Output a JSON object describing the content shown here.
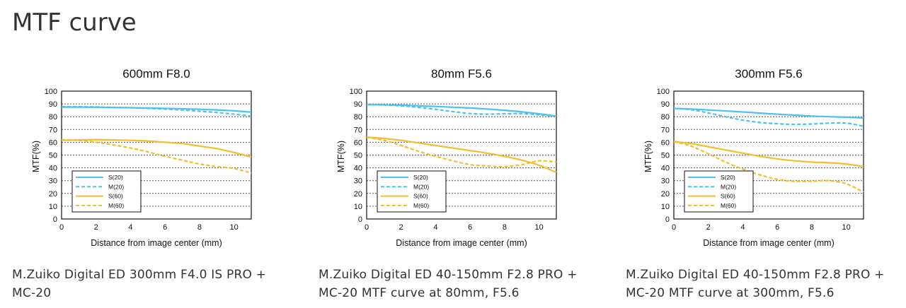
{
  "page": {
    "title": "MTF curve"
  },
  "colors": {
    "sagittal": "#4fc1ef",
    "sagittal_dash": "#4fc1ef",
    "low": "#f5bc2c",
    "grid": "#555555",
    "axis": "#111111"
  },
  "captions": [
    "M.Zuiko Digital ED 300mm F4.0 IS PRO + MC-20",
    "M.Zuiko Digital ED 40-150mm F2.8 PRO + MC-20 MTF curve at 80mm, F5.6",
    "M.Zuiko Digital ED 40-150mm F2.8 PRO + MC-20 MTF curve at 300mm, F5.6"
  ],
  "chart_data": [
    {
      "type": "line",
      "title": "600mm F8.0",
      "xlabel": "Distance from image center (mm)",
      "ylabel": "MTF(%)",
      "xlim": [
        0,
        11
      ],
      "ylim": [
        0,
        100
      ],
      "xticks": [
        0,
        2,
        4,
        6,
        8,
        10
      ],
      "yticks": [
        0,
        10,
        20,
        30,
        40,
        50,
        60,
        70,
        80,
        90,
        100
      ],
      "grid": "horizontal dotted",
      "legend_position": "bottom-left",
      "series": [
        {
          "name": "S(20)",
          "color": "#4fc1ef",
          "dash": false,
          "x": [
            0,
            1,
            2,
            3,
            4,
            5,
            6,
            7,
            8,
            9,
            10,
            11
          ],
          "y": [
            87.5,
            87.5,
            87.4,
            87.2,
            87,
            86.8,
            86.5,
            86.2,
            85.8,
            85.3,
            84.6,
            83.5
          ]
        },
        {
          "name": "M(20)",
          "color": "#4fc1ef",
          "dash": true,
          "x": [
            0,
            1,
            2,
            3,
            4,
            5,
            6,
            7,
            8,
            9,
            10,
            11
          ],
          "y": [
            87.8,
            87.8,
            87.6,
            87.3,
            87,
            86.5,
            86,
            85.2,
            84.3,
            83.3,
            82,
            80.5
          ]
        },
        {
          "name": "S(60)",
          "color": "#f5bc2c",
          "dash": false,
          "x": [
            0,
            1,
            2,
            3,
            4,
            5,
            6,
            7,
            8,
            9,
            10,
            11
          ],
          "y": [
            61.5,
            61.8,
            62,
            61.8,
            61.5,
            61,
            60,
            59,
            57,
            55,
            52,
            48.5
          ]
        },
        {
          "name": "M(60)",
          "color": "#f5bc2c",
          "dash": true,
          "x": [
            0,
            1,
            2,
            3,
            4,
            5,
            6,
            7,
            8,
            9,
            10,
            11
          ],
          "y": [
            62,
            61.5,
            60,
            58,
            55.5,
            52.5,
            49,
            46,
            43,
            41,
            39.5,
            36
          ]
        }
      ]
    },
    {
      "type": "line",
      "title": "80mm F5.6",
      "xlabel": "Distance from image center (mm)",
      "ylabel": "MTF(%)",
      "xlim": [
        0,
        11
      ],
      "ylim": [
        0,
        100
      ],
      "xticks": [
        0,
        2,
        4,
        6,
        8,
        10
      ],
      "yticks": [
        0,
        10,
        20,
        30,
        40,
        50,
        60,
        70,
        80,
        90,
        100
      ],
      "grid": "horizontal dotted",
      "legend_position": "bottom-left",
      "series": [
        {
          "name": "S(20)",
          "color": "#4fc1ef",
          "dash": false,
          "x": [
            0,
            1,
            2,
            3,
            4,
            5,
            6,
            7,
            8,
            9,
            10,
            11
          ],
          "y": [
            89.5,
            89.3,
            89,
            88.5,
            88,
            87.4,
            86.8,
            86,
            85,
            83.8,
            82.3,
            80.5
          ]
        },
        {
          "name": "M(20)",
          "color": "#4fc1ef",
          "dash": true,
          "x": [
            0,
            1,
            2,
            3,
            4,
            5,
            6,
            7,
            8,
            9,
            10,
            11
          ],
          "y": [
            89.5,
            89.2,
            88.5,
            87.3,
            85.8,
            84,
            82.5,
            82,
            82.3,
            82.5,
            81.5,
            80.5
          ]
        },
        {
          "name": "S(60)",
          "color": "#f5bc2c",
          "dash": false,
          "x": [
            0,
            1,
            2,
            3,
            4,
            5,
            6,
            7,
            8,
            9,
            10,
            11
          ],
          "y": [
            64,
            63,
            61.5,
            59.5,
            57.5,
            55.5,
            53.5,
            51.5,
            49,
            46,
            42,
            36.5
          ]
        },
        {
          "name": "M(60)",
          "color": "#f5bc2c",
          "dash": true,
          "x": [
            0,
            1,
            2,
            3,
            4,
            5,
            6,
            7,
            8,
            9,
            10,
            11
          ],
          "y": [
            64,
            61.5,
            57.5,
            53,
            49,
            45.5,
            42.5,
            41.5,
            41,
            42.5,
            45.5,
            44.5
          ]
        }
      ]
    },
    {
      "type": "line",
      "title": "300mm F5.6",
      "xlabel": "Distance from image center (mm)",
      "ylabel": "MTF(%)",
      "xlim": [
        0,
        11
      ],
      "ylim": [
        0,
        100
      ],
      "xticks": [
        0,
        2,
        4,
        6,
        8,
        10
      ],
      "yticks": [
        0,
        10,
        20,
        30,
        40,
        50,
        60,
        70,
        80,
        90,
        100
      ],
      "grid": "horizontal dotted",
      "legend_position": "bottom-left",
      "series": [
        {
          "name": "S(20)",
          "color": "#4fc1ef",
          "dash": false,
          "x": [
            0,
            1,
            2,
            3,
            4,
            5,
            6,
            7,
            8,
            9,
            10,
            11
          ],
          "y": [
            86.5,
            86,
            85.3,
            84.5,
            83.7,
            82.8,
            82,
            81.2,
            80.5,
            80,
            79.6,
            79
          ]
        },
        {
          "name": "M(20)",
          "color": "#4fc1ef",
          "dash": true,
          "x": [
            0,
            1,
            2,
            3,
            4,
            5,
            6,
            7,
            8,
            9,
            10,
            11
          ],
          "y": [
            86.5,
            85.5,
            83,
            80,
            77.3,
            75.5,
            74.5,
            74,
            74.3,
            75,
            75,
            72.5
          ]
        },
        {
          "name": "S(60)",
          "color": "#f5bc2c",
          "dash": false,
          "x": [
            0,
            1,
            2,
            3,
            4,
            5,
            6,
            7,
            8,
            9,
            10,
            11
          ],
          "y": [
            60.5,
            59,
            56.5,
            54,
            51.5,
            49,
            47,
            45.5,
            44.5,
            44,
            43,
            41
          ]
        },
        {
          "name": "M(60)",
          "color": "#f5bc2c",
          "dash": true,
          "x": [
            0,
            1,
            2,
            3,
            4,
            5,
            6,
            7,
            8,
            9,
            10,
            11
          ],
          "y": [
            60.5,
            57,
            51,
            44.5,
            39,
            34.5,
            31,
            29.5,
            29.5,
            30,
            27.5,
            21
          ]
        }
      ]
    }
  ]
}
